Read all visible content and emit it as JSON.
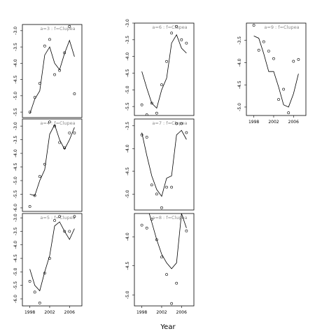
{
  "xlabel": "Year",
  "chart_data": [
    {
      "type": "scatter",
      "title": "a=3 : f=Clupea",
      "x": [
        1998,
        1999,
        2000,
        2001,
        2002,
        2003,
        2004,
        2005,
        2006,
        2007
      ],
      "observed": [
        -5.5,
        -5.05,
        -4.62,
        -3.47,
        -3.27,
        -4.35,
        -4.22,
        -3.68,
        -2.87,
        -4.94
      ],
      "fitted": [
        -5.55,
        -5.1,
        -4.85,
        -3.75,
        -3.5,
        -4.0,
        -4.2,
        -3.7,
        -3.3,
        -3.8
      ],
      "xlim": [
        1996.5,
        2008.5
      ],
      "ylim": [
        -5.67,
        -2.81
      ],
      "yticks": [
        {
          "value": -3,
          "label": "-3.0"
        },
        -3.5,
        {
          "value": -4,
          "label": "-4.0"
        },
        -4.5,
        {
          "value": -5,
          "label": "-5.0"
        },
        -5.5
      ]
    },
    {
      "type": "scatter",
      "title": "a=4 : f=Clupea",
      "x": [
        1998,
        1999,
        2000,
        2001,
        2002,
        2003,
        2004,
        2005,
        2006,
        2007
      ],
      "observed": [
        -5.95,
        -5.55,
        -4.85,
        -4.4,
        -2.85,
        -3.0,
        -3.6,
        -3.8,
        -3.25,
        -3.25
      ],
      "fitted": [
        -5.5,
        -5.55,
        -5.0,
        -4.6,
        -3.3,
        -2.95,
        -3.5,
        -3.85,
        -3.5,
        -3.05
      ],
      "xlim": [
        1996.5,
        2008.5
      ],
      "ylim": [
        -6.13,
        -2.74
      ],
      "yticks": [
        {
          "value": -3,
          "label": "-3.0"
        },
        -3.5,
        {
          "value": -4,
          "label": "-4.0"
        },
        -4.5,
        {
          "value": -5,
          "label": "-5.0"
        },
        -5.5,
        {
          "value": -6,
          "label": "-6.0"
        }
      ]
    },
    {
      "type": "scatter",
      "title": "a=5 : f=Clupea",
      "x": [
        1998,
        1999,
        2000,
        2001,
        2002,
        2003,
        2004,
        2005,
        2006,
        2007
      ],
      "observed": [
        -5.35,
        -5.75,
        -6.15,
        -5.05,
        -4.5,
        -3.1,
        -2.95,
        -3.5,
        -3.5,
        -2.95
      ],
      "fitted": [
        -4.9,
        -5.5,
        -5.7,
        -5.0,
        -4.4,
        -3.3,
        -3.15,
        -3.5,
        -3.8,
        -3.4
      ],
      "xlim": [
        1996.5,
        2008.5
      ],
      "ylim": [
        -6.26,
        -2.84
      ],
      "yticks": [
        {
          "value": -3,
          "label": "-3.0"
        },
        -3.5,
        {
          "value": -4,
          "label": "-4.0"
        },
        -4.5,
        {
          "value": -5,
          "label": "-5.0"
        },
        -5.5,
        {
          "value": -6,
          "label": "-6.0"
        }
      ],
      "xticks": [
        1998,
        2002,
        2006
      ]
    },
    {
      "type": "scatter",
      "title": "a=6 : f=Clupea",
      "x": [
        1998,
        1999,
        2000,
        2001,
        2002,
        2003,
        2004,
        2005,
        2006,
        2007
      ],
      "observed": [
        -5.45,
        -5.75,
        -5.4,
        -5.7,
        -4.85,
        -4.15,
        -3.3,
        -3.1,
        -3.5,
        -3.6
      ],
      "fitted": [
        -4.45,
        -4.95,
        -5.4,
        -5.55,
        -5.0,
        -4.65,
        -3.6,
        -3.35,
        -3.75,
        -3.9
      ],
      "xlim": [
        1996.5,
        2008.5
      ],
      "ylim": [
        -5.77,
        -3.0
      ],
      "yticks": [
        {
          "value": -3,
          "label": "-3.0"
        },
        -3.5,
        {
          "value": -4,
          "label": "-4.0"
        },
        -4.5,
        {
          "value": -5,
          "label": "-5.0"
        },
        -5.5
      ]
    },
    {
      "type": "scatter",
      "title": "a=7 : f=Clupea",
      "x": [
        1998,
        1999,
        2000,
        2001,
        2002,
        2003,
        2004,
        2005,
        2006,
        2007
      ],
      "observed": [
        -3.7,
        -3.75,
        -4.8,
        -5.0,
        -5.3,
        -4.85,
        -4.85,
        -3.45,
        -3.45,
        -3.65
      ],
      "fitted": [
        -3.65,
        -4.15,
        -4.6,
        -4.9,
        -5.05,
        -4.65,
        -4.6,
        -3.7,
        -3.6,
        -3.8
      ],
      "xlim": [
        1996.5,
        2008.5
      ],
      "ylim": [
        -5.35,
        -3.35
      ],
      "yticks": [
        -3.5,
        {
          "value": -4,
          "label": "-4.0"
        },
        -4.5,
        {
          "value": -5,
          "label": "-5.0"
        }
      ]
    },
    {
      "type": "scatter",
      "title": "a=8 : f=Clupea",
      "x": [
        1998,
        1999,
        2000,
        2001,
        2002,
        2003,
        2004,
        2005,
        2006,
        2007
      ],
      "observed": [
        -3.8,
        -3.85,
        -3.7,
        -4.05,
        -4.35,
        -4.65,
        -5.15,
        -4.8,
        -3.55,
        -3.9
      ],
      "fitted": [
        -3.3,
        -3.45,
        -3.75,
        -4.05,
        -4.3,
        -4.45,
        -4.55,
        -4.45,
        -3.6,
        -3.85
      ],
      "xlim": [
        1996.5,
        2008.5
      ],
      "ylim": [
        -5.19,
        -3.6
      ],
      "yticks": [
        {
          "value": -4,
          "label": "-4.0"
        },
        -4.5,
        {
          "value": -5,
          "label": "-5.0"
        }
      ],
      "xticks": [
        1998,
        2002,
        2006
      ]
    },
    {
      "type": "scatter",
      "title": "a=9 : f=Clupea",
      "x": [
        1998,
        1999,
        2000,
        2001,
        2002,
        2003,
        2004,
        2005,
        2006,
        2007
      ],
      "observed": [
        -3.16,
        -3.72,
        -3.53,
        -3.74,
        -3.91,
        -4.83,
        -4.6,
        -5.13,
        -3.97,
        -3.93
      ],
      "fitted": [
        -3.4,
        -3.45,
        -3.8,
        -4.2,
        -4.2,
        -4.55,
        -4.95,
        -5.0,
        -4.7,
        -4.25
      ],
      "xlim": [
        1996.5,
        2008.5
      ],
      "ylim": [
        -5.19,
        -3.11
      ],
      "yticks": [
        -3.5,
        {
          "value": -4,
          "label": "-4.0"
        },
        -4.5,
        {
          "value": -5,
          "label": "-5.0"
        }
      ],
      "xticks": [
        1998,
        2002,
        2006
      ]
    }
  ]
}
